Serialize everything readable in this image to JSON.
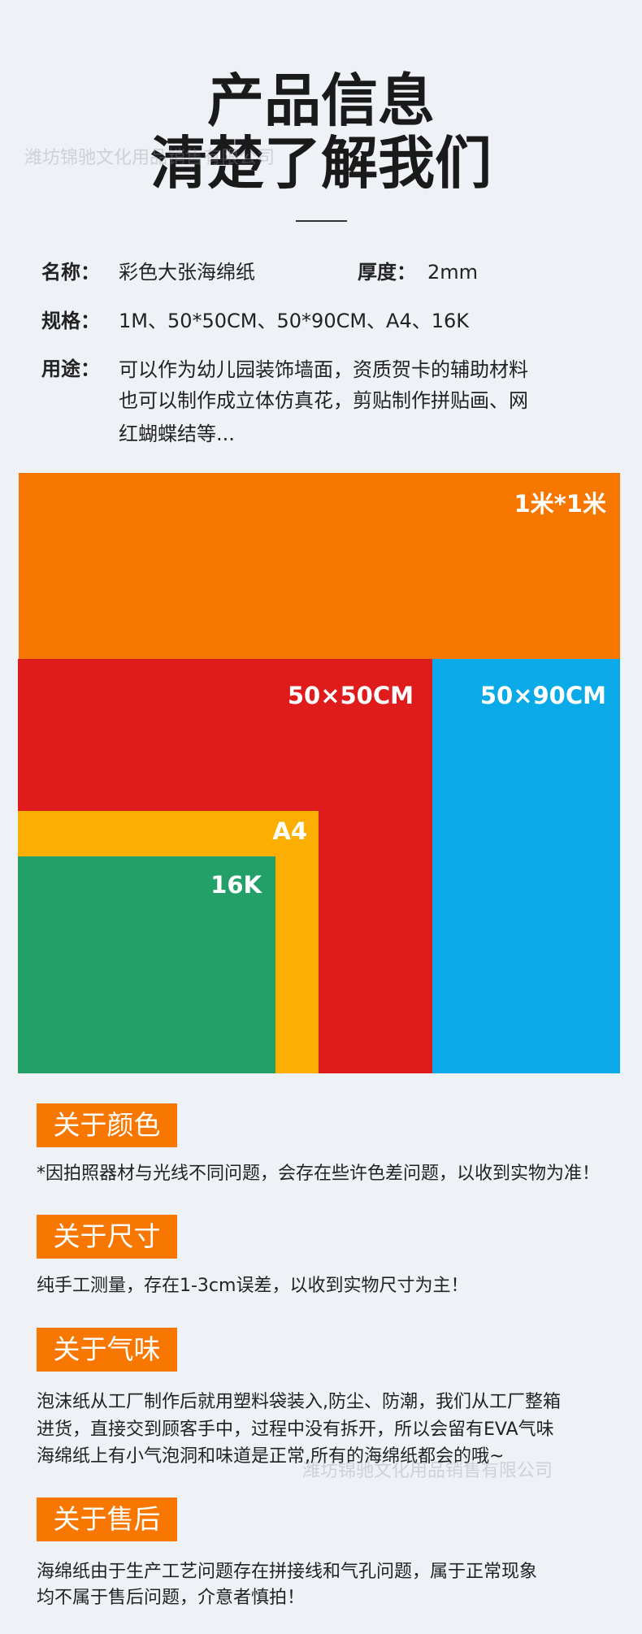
{
  "header": {
    "title_lines": [
      "产品信息",
      "清楚了解我们"
    ]
  },
  "watermarks": [
    "潍坊锦驰文化用品销售有限公司",
    "潍坊锦驰文化用品销售有限公司"
  ],
  "info": {
    "name_label": "名称：",
    "name": "彩色大张海绵纸",
    "thickness_label": "厚度：",
    "thickness": "2mm",
    "spec_label": "规格：",
    "spec": "1M、50*50CM、50*90CM、A4、16K",
    "use_label": "用途：",
    "use_lines": [
      "可以作为幼儿园装饰墙面，资质贺卡的辅助材料",
      "也可以制作成立体仿真花，剪贴制作拼贴画、网",
      "红蝴蝶结等..."
    ]
  },
  "sizes": [
    "1米*1米",
    "50×50CM",
    "50×90CM",
    "A4",
    "16K"
  ],
  "sections": [
    {
      "heading": "关于颜色",
      "lines": [
        "*因拍照器材与光线不同问题，会存在些许色差问题，以收到实物为准！"
      ]
    },
    {
      "heading": "关于尺寸",
      "lines": [
        "纯手工测量，存在1-3cm误差，以收到实物尺寸为主！"
      ]
    },
    {
      "heading": "关于气味",
      "lines": [
        "泡沫纸从工厂制作后就用塑料袋装入,防尘、防潮，我们从工厂整箱",
        "进货，直接交到顾客手中，过程中没有拆开，所以会留有EVA气味",
        "海绵纸上有小气泡洞和味道是正常,所有的海绵纸都会的哦~"
      ]
    },
    {
      "heading": "关于售后",
      "lines": [
        "海绵纸由于生产工艺问题存在拼接线和气孔问题，属于正常现象",
        "均不属于售后问题，介意者慎拍！"
      ]
    }
  ]
}
